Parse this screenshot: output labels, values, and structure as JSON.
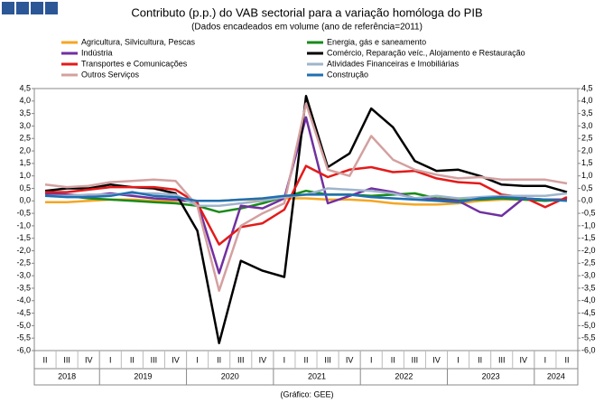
{
  "chart_data": {
    "type": "line",
    "title": "Contributo (p.p.) do VAB sectorial para a variação homóloga  do PIB",
    "subtitle": "(Dados encadeados em volume (ano de referência=2011)",
    "source": "(Gráfico: GEE)",
    "categories": [
      "II",
      "III",
      "IV",
      "I",
      "II",
      "III",
      "IV",
      "I",
      "II",
      "III",
      "IV",
      "I",
      "II",
      "III",
      "IV",
      "I",
      "II",
      "III",
      "IV",
      "I",
      "II",
      "III",
      "IV",
      "I",
      "II"
    ],
    "years": [
      "2018",
      "2019",
      "2020",
      "2021",
      "2022",
      "2023",
      "2024"
    ],
    "series": [
      {
        "name": "Agricultura, Silvicultura, Pescas",
        "color": "#f5a623",
        "values": [
          -0.05,
          -0.05,
          0.0,
          0.05,
          0.05,
          0.0,
          0.0,
          0.0,
          0.0,
          0.05,
          0.05,
          0.1,
          0.1,
          0.05,
          0.05,
          0.0,
          -0.1,
          -0.15,
          -0.15,
          -0.1,
          0.0,
          0.05,
          0.05,
          0.05,
          0.05
        ]
      },
      {
        "name": "Energia, gás e saneamento",
        "color": "#1a8a1a",
        "values": [
          0.3,
          0.2,
          0.1,
          0.05,
          0.0,
          -0.05,
          -0.1,
          -0.2,
          -0.45,
          -0.3,
          -0.1,
          0.15,
          0.4,
          0.25,
          0.25,
          0.2,
          0.25,
          0.3,
          0.1,
          0.05,
          0.05,
          0.1,
          0.05,
          0.0,
          0.05
        ]
      },
      {
        "name": "Indústria",
        "color": "#7030a0",
        "values": [
          0.3,
          0.25,
          0.2,
          0.3,
          0.2,
          0.1,
          0.05,
          -0.05,
          -2.9,
          -0.2,
          -0.3,
          0.1,
          3.35,
          -0.1,
          0.2,
          0.5,
          0.35,
          0.1,
          0.05,
          0.0,
          -0.45,
          -0.6,
          0.1,
          0.05,
          0.05
        ]
      },
      {
        "name": "Comércio, Reparação veíc., Alojamento e Restauração",
        "color": "#000000",
        "values": [
          0.4,
          0.5,
          0.5,
          0.65,
          0.55,
          0.5,
          0.3,
          -1.2,
          -5.7,
          -2.4,
          -2.8,
          -3.05,
          4.2,
          1.35,
          1.9,
          3.7,
          2.95,
          1.6,
          1.2,
          1.25,
          1.0,
          0.65,
          0.6,
          0.6,
          0.35
        ]
      },
      {
        "name": "Transportes e Comunicações",
        "color": "#e41a1a",
        "values": [
          0.35,
          0.35,
          0.45,
          0.55,
          0.55,
          0.55,
          0.45,
          -0.1,
          -1.75,
          -1.05,
          -0.9,
          -0.35,
          1.4,
          0.95,
          1.25,
          1.35,
          1.15,
          1.2,
          0.9,
          0.75,
          0.7,
          0.25,
          0.15,
          -0.25,
          0.15
        ]
      },
      {
        "name": "Atividades Financeiras e Imobiliárias",
        "color": "#9fb4cc",
        "values": [
          0.2,
          0.2,
          0.25,
          0.25,
          0.3,
          0.3,
          0.25,
          -0.2,
          -0.2,
          -0.1,
          0.0,
          0.15,
          0.25,
          0.5,
          0.45,
          0.4,
          0.3,
          0.1,
          0.2,
          0.1,
          0.15,
          0.2,
          0.2,
          0.2,
          0.3
        ]
      },
      {
        "name": "Outros Serviços",
        "color": "#d4a0a0",
        "values": [
          0.65,
          0.55,
          0.6,
          0.75,
          0.8,
          0.85,
          0.8,
          -0.2,
          -3.6,
          -1.0,
          -0.5,
          -0.1,
          3.9,
          1.25,
          1.0,
          2.6,
          1.65,
          1.25,
          1.05,
          0.9,
          0.95,
          0.85,
          0.85,
          0.85,
          0.7
        ]
      },
      {
        "name": "Construção",
        "color": "#1f6fb0",
        "values": [
          0.2,
          0.15,
          0.15,
          0.2,
          0.35,
          0.2,
          0.15,
          0.0,
          0.0,
          0.05,
          0.1,
          0.2,
          0.25,
          0.25,
          0.25,
          0.15,
          0.1,
          0.05,
          0.0,
          -0.05,
          0.1,
          0.15,
          0.1,
          0.05,
          0.0
        ]
      }
    ],
    "ylim": [
      -6.0,
      4.5
    ],
    "yticks": [
      {
        "value": 4.5,
        "label": "4,5"
      },
      {
        "value": 4.0,
        "label": "4,0"
      },
      {
        "value": 3.5,
        "label": "3,5"
      },
      {
        "value": 3.0,
        "label": "3,0"
      },
      {
        "value": 2.5,
        "label": "2,5"
      },
      {
        "value": 2.0,
        "label": "2,0"
      },
      {
        "value": 1.5,
        "label": "1,5"
      },
      {
        "value": 1.0,
        "label": "1,0"
      },
      {
        "value": 0.5,
        "label": "0,5"
      },
      {
        "value": 0.0,
        "label": "0,0"
      },
      {
        "value": -0.5,
        "label": "-0,5"
      },
      {
        "value": -1.0,
        "label": "-1,0"
      },
      {
        "value": -1.5,
        "label": "-1,5"
      },
      {
        "value": -2.0,
        "label": "-2,0"
      },
      {
        "value": -2.5,
        "label": "-2,5"
      },
      {
        "value": -3.0,
        "label": "-3,0"
      },
      {
        "value": -3.5,
        "label": "-3,5"
      },
      {
        "value": -4.0,
        "label": "-4,0"
      },
      {
        "value": -4.5,
        "label": "-4,5"
      },
      {
        "value": -5.0,
        "label": "-5,0"
      },
      {
        "value": -5.5,
        "label": "-5,5"
      },
      {
        "value": -6.0,
        "label": "-6,0"
      }
    ],
    "grid": false
  }
}
